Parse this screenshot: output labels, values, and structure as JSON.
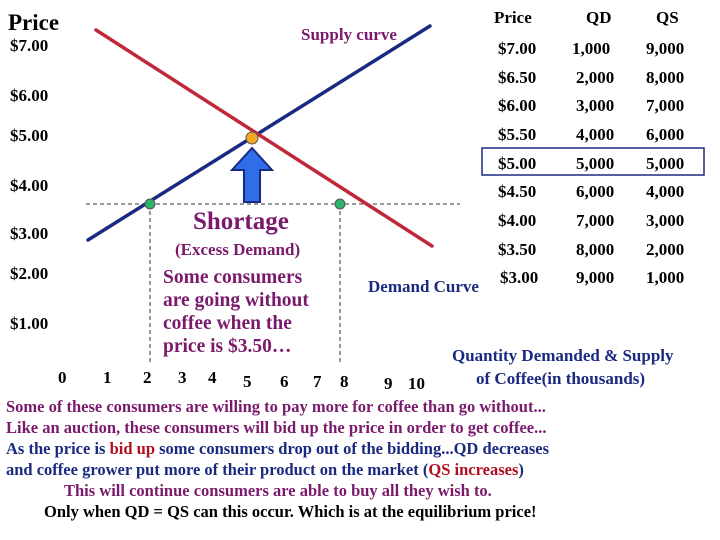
{
  "chart_data": {
    "type": "line",
    "ylabel": "Price",
    "y_ticks": [
      "$7.00",
      "$6.00",
      "$5.00",
      "$4.00",
      "$3.00",
      "$2.00",
      "$1.00",
      "0"
    ],
    "x_ticks": [
      "1",
      "2",
      "3",
      "4",
      "5",
      "6",
      "7",
      "8",
      "9",
      "10"
    ],
    "xlabel_line1": "Quantity Demanded & Supply",
    "xlabel_line2": "of Coffee(in thousands)",
    "supply_label": "Supply curve",
    "demand_label": "Demand Curve",
    "shortage_title": "Shortage",
    "shortage_subtitle": "(Excess Demand)",
    "shortage_note": [
      "Some consumers",
      "are going without",
      "coffee when the",
      "price is $3.50…"
    ],
    "equilibrium": {
      "price": 5.0,
      "quantity": 5
    },
    "shortage_price": 3.5,
    "shortage_quantity_supplied": 2,
    "shortage_quantity_demanded": 8,
    "colors": {
      "supply": "#1a2a80",
      "demand": "#c0283a",
      "equilibrium": "#f5a623",
      "marker": "#2db36b",
      "arrow_fill": "#2f6ee8",
      "arrow_stroke": "#1a2a80"
    },
    "table": {
      "headers": {
        "price": "Price",
        "qd": "QD",
        "qs": "QS"
      },
      "rows": [
        {
          "price": "$7.00",
          "qd": "1,000",
          "qs": "9,000"
        },
        {
          "price": "$6.50",
          "qd": "2,000",
          "qs": "8,000"
        },
        {
          "price": "$6.00",
          "qd": "3,000",
          "qs": "7,000"
        },
        {
          "price": "$5.50",
          "qd": "4,000",
          "qs": "6,000"
        },
        {
          "price": "$5.00",
          "qd": "5,000",
          "qs": "5,000"
        },
        {
          "price": "$4.50",
          "qd": "6,000",
          "qs": "4,000"
        },
        {
          "price": "$4.00",
          "qd": "7,000",
          "qs": "3,000"
        },
        {
          "price": "$3.50",
          "qd": "8,000",
          "qs": "2,000"
        },
        {
          "price": "$3.00",
          "qd": "9,000",
          "qs": "1,000"
        }
      ]
    }
  },
  "text": {
    "line1": "Some of these consumers are willing to pay more for coffee than go without...",
    "line2": "Like an auction, these consumers will bid up the price in order to get coffee...",
    "line3_a": "As the price is ",
    "line3_b": "bid up",
    "line3_c": " some consumers drop out of the bidding...QD decreases",
    "line4_a": "and coffee grower put more of their product on the market (",
    "line4_b": "QS increases",
    "line4_c": ")",
    "line5": "This will continue consumers are able to buy all they wish to.",
    "line6": "Only when QD = QS can this occur.  Which is at the equilibrium price!"
  }
}
